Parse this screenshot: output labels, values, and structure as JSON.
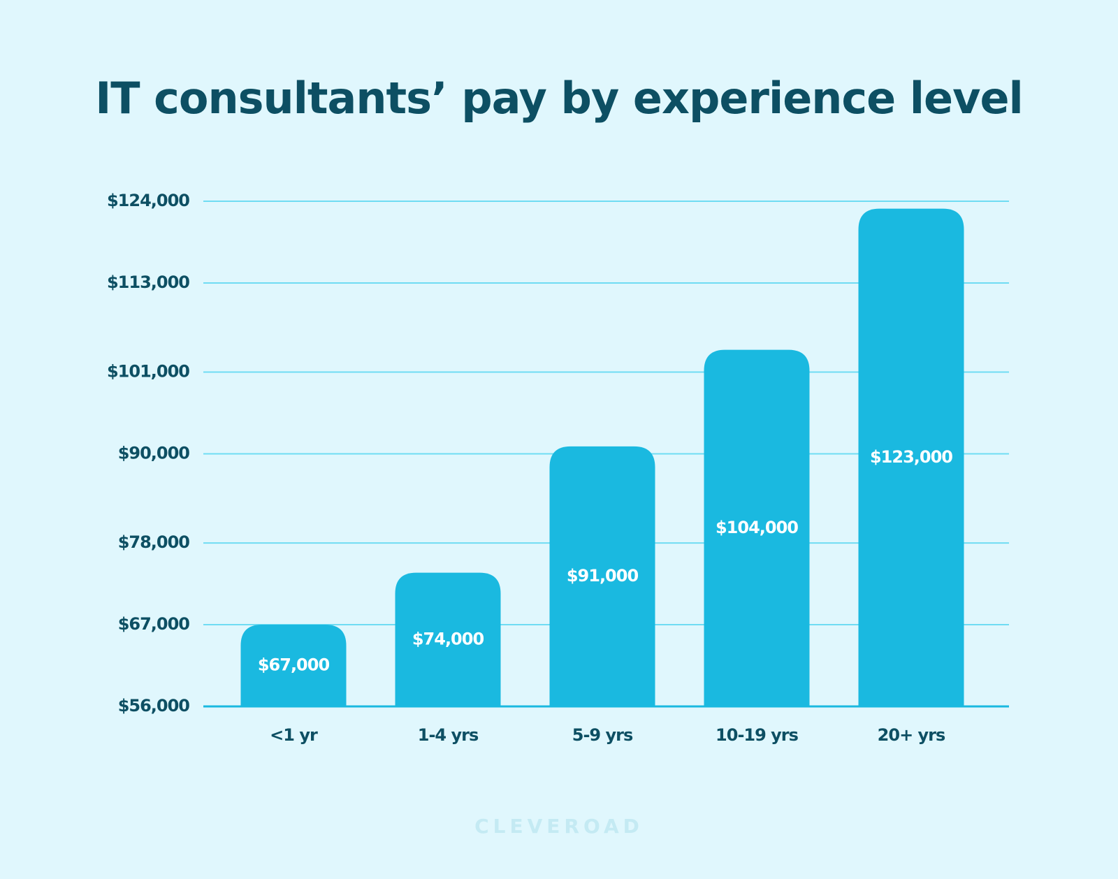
{
  "chart_data": {
    "type": "bar",
    "title": "IT consultants’ pay by experience level",
    "categories": [
      "<1 yr",
      "1-4 yrs",
      "5-9 yrs",
      "10-19 yrs",
      "20+ yrs"
    ],
    "values": [
      67000,
      74000,
      91000,
      104000,
      123000
    ],
    "value_labels": [
      "$67,000",
      "$74,000",
      "$91,000",
      "$104,000",
      "$123,000"
    ],
    "color": "#1ab9e0",
    "ylim": [
      56000,
      124000
    ],
    "yticks": [
      {
        "value": 56000,
        "label": "$56,000"
      },
      {
        "value": 67000,
        "label": "$67,000"
      },
      {
        "value": 78000,
        "label": "$78,000"
      },
      {
        "value": 90000,
        "label": "$90,000"
      },
      {
        "value": 101000,
        "label": "$101,000"
      },
      {
        "value": 113000,
        "label": "$113,000"
      },
      {
        "value": 124000,
        "label": "$124,000"
      }
    ],
    "grid": true
  },
  "watermark": "CLEVEROAD"
}
